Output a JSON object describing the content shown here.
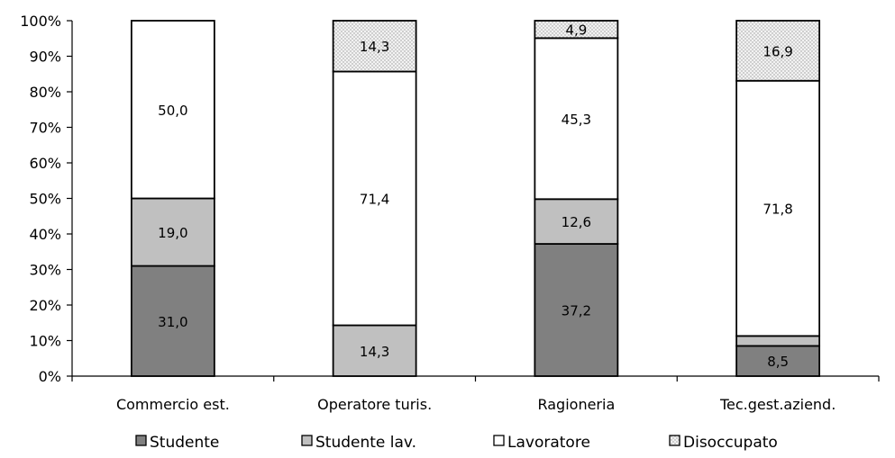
{
  "chart_data": {
    "type": "bar",
    "stacked": true,
    "percent": true,
    "categories": [
      "Commercio est.",
      "Operatore turis.",
      "Ragioneria",
      "Tec.gest.aziend."
    ],
    "series": [
      {
        "name": "Studente",
        "color": "#808080",
        "pattern": "solid",
        "values": [
          31.0,
          0.0,
          37.2,
          8.5
        ],
        "labels": [
          "31,0",
          "",
          "37,2",
          "8,5"
        ]
      },
      {
        "name": "Studente lav.",
        "color": "#c0c0c0",
        "pattern": "solid",
        "values": [
          19.0,
          14.3,
          12.6,
          2.8
        ],
        "labels": [
          "19,0",
          "14,3",
          "12,6",
          ""
        ]
      },
      {
        "name": "Lavoratore",
        "color": "#ffffff",
        "pattern": "solid",
        "values": [
          50.0,
          71.4,
          45.3,
          71.8
        ],
        "labels": [
          "50,0",
          "71,4",
          "45,3",
          "71,8"
        ]
      },
      {
        "name": "Disoccupato",
        "color": "#e6e6e6",
        "pattern": "dotted",
        "values": [
          0.0,
          14.3,
          4.9,
          16.9
        ],
        "labels": [
          "",
          "14,3",
          "4,9",
          "16,9"
        ]
      }
    ],
    "y_ticks": [
      "0%",
      "10%",
      "20%",
      "30%",
      "40%",
      "50%",
      "60%",
      "70%",
      "80%",
      "90%",
      "100%"
    ],
    "ylim": [
      0,
      100
    ],
    "legend_position": "bottom",
    "grid": false
  }
}
